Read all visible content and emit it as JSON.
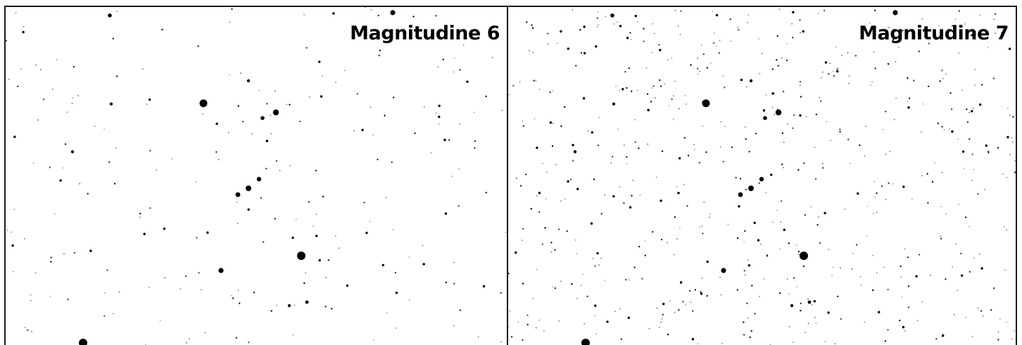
{
  "panels": [
    {
      "id": "mag6",
      "label": "Magnitudine 6",
      "limiting_magnitude": 6
    },
    {
      "id": "mag7",
      "label": "Magnitudine 7",
      "limiting_magnitude": 7
    }
  ],
  "colors": {
    "background": "#ffffff",
    "star": "#000000",
    "border": "#1a1a1a"
  }
}
